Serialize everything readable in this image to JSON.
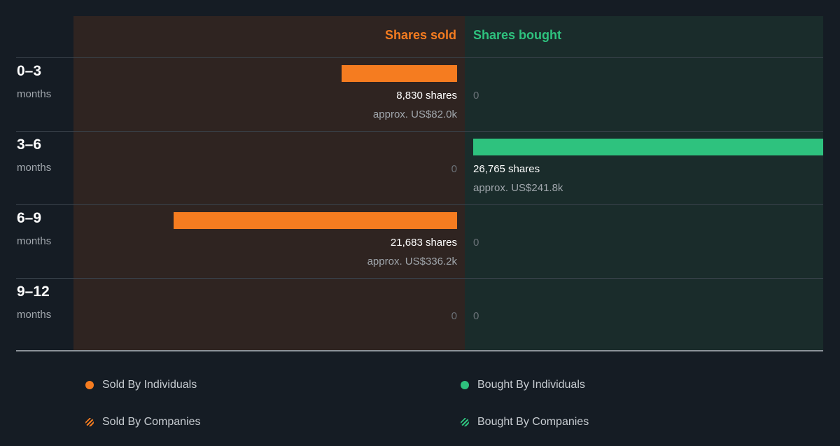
{
  "chart_data": {
    "type": "bar",
    "headers": {
      "sold": "Shares sold",
      "bought": "Shares bought"
    },
    "rows": [
      {
        "period": "0–3",
        "unit": "months",
        "sold": {
          "shares": 8830,
          "shares_label": "8,830 shares",
          "approx": "approx. US$82.0k"
        },
        "bought": {
          "shares": 0,
          "shares_label": "0",
          "approx": ""
        }
      },
      {
        "period": "3–6",
        "unit": "months",
        "sold": {
          "shares": 0,
          "shares_label": "0",
          "approx": ""
        },
        "bought": {
          "shares": 26765,
          "shares_label": "26,765 shares",
          "approx": "approx. US$241.8k"
        }
      },
      {
        "period": "6–9",
        "unit": "months",
        "sold": {
          "shares": 21683,
          "shares_label": "21,683 shares",
          "approx": "approx. US$336.2k"
        },
        "bought": {
          "shares": 0,
          "shares_label": "0",
          "approx": ""
        }
      },
      {
        "period": "9–12",
        "unit": "months",
        "sold": {
          "shares": 0,
          "shares_label": "0",
          "approx": ""
        },
        "bought": {
          "shares": 0,
          "shares_label": "0",
          "approx": ""
        }
      }
    ],
    "xmax_shares": 26765,
    "legend": [
      {
        "label": "Sold By Individuals",
        "style": "solid",
        "color": "#f57c20"
      },
      {
        "label": "Bought By Individuals",
        "style": "solid",
        "color": "#2ec27e"
      },
      {
        "label": "Sold By Companies",
        "style": "hatched",
        "color": "#f57c20"
      },
      {
        "label": "Bought By Companies",
        "style": "hatched",
        "color": "#2ec27e"
      }
    ],
    "colors": {
      "sold": "#f57c20",
      "bought": "#2ec27e"
    }
  }
}
